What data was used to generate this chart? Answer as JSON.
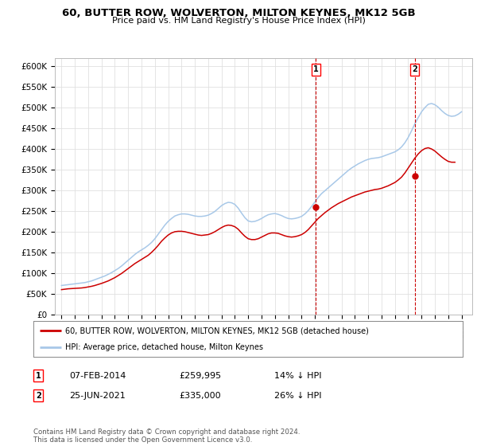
{
  "title": "60, BUTTER ROW, WOLVERTON, MILTON KEYNES, MK12 5GB",
  "subtitle": "Price paid vs. HM Land Registry's House Price Index (HPI)",
  "ylabel_ticks": [
    "£0",
    "£50K",
    "£100K",
    "£150K",
    "£200K",
    "£250K",
    "£300K",
    "£350K",
    "£400K",
    "£450K",
    "£500K",
    "£550K",
    "£600K"
  ],
  "ylim": [
    0,
    620000
  ],
  "xlim_start": 1994.5,
  "xlim_end": 2025.8,
  "hpi_color": "#a8c8e8",
  "price_color": "#cc0000",
  "marker1_year": 2014.08,
  "marker1_price": 259995,
  "marker1_label": "1",
  "marker1_date": "07-FEB-2014",
  "marker1_pct": "14% ↓ HPI",
  "marker2_year": 2021.48,
  "marker2_price": 335000,
  "marker2_label": "2",
  "marker2_date": "25-JUN-2021",
  "marker2_pct": "26% ↓ HPI",
  "legend_line1": "60, BUTTER ROW, WOLVERTON, MILTON KEYNES, MK12 5GB (detached house)",
  "legend_line2": "HPI: Average price, detached house, Milton Keynes",
  "footer": "Contains HM Land Registry data © Crown copyright and database right 2024.\nThis data is licensed under the Open Government Licence v3.0.",
  "background_color": "#ffffff",
  "grid_color": "#e0e0e0",
  "hpi_years": [
    1995.0,
    1995.25,
    1995.5,
    1995.75,
    1996.0,
    1996.25,
    1996.5,
    1996.75,
    1997.0,
    1997.25,
    1997.5,
    1997.75,
    1998.0,
    1998.25,
    1998.5,
    1998.75,
    1999.0,
    1999.25,
    1999.5,
    1999.75,
    2000.0,
    2000.25,
    2000.5,
    2000.75,
    2001.0,
    2001.25,
    2001.5,
    2001.75,
    2002.0,
    2002.25,
    2002.5,
    2002.75,
    2003.0,
    2003.25,
    2003.5,
    2003.75,
    2004.0,
    2004.25,
    2004.5,
    2004.75,
    2005.0,
    2005.25,
    2005.5,
    2005.75,
    2006.0,
    2006.25,
    2006.5,
    2006.75,
    2007.0,
    2007.25,
    2007.5,
    2007.75,
    2008.0,
    2008.25,
    2008.5,
    2008.75,
    2009.0,
    2009.25,
    2009.5,
    2009.75,
    2010.0,
    2010.25,
    2010.5,
    2010.75,
    2011.0,
    2011.25,
    2011.5,
    2011.75,
    2012.0,
    2012.25,
    2012.5,
    2012.75,
    2013.0,
    2013.25,
    2013.5,
    2013.75,
    2014.0,
    2014.25,
    2014.5,
    2014.75,
    2015.0,
    2015.25,
    2015.5,
    2015.75,
    2016.0,
    2016.25,
    2016.5,
    2016.75,
    2017.0,
    2017.25,
    2017.5,
    2017.75,
    2018.0,
    2018.25,
    2018.5,
    2018.75,
    2019.0,
    2019.25,
    2019.5,
    2019.75,
    2020.0,
    2020.25,
    2020.5,
    2020.75,
    2021.0,
    2021.25,
    2021.5,
    2021.75,
    2022.0,
    2022.25,
    2022.5,
    2022.75,
    2023.0,
    2023.25,
    2023.5,
    2023.75,
    2024.0,
    2024.25,
    2024.5,
    2024.75,
    2025.0
  ],
  "hpi_values": [
    70000,
    71000,
    72000,
    73000,
    74000,
    75000,
    76000,
    77000,
    79000,
    81000,
    84000,
    87000,
    90000,
    93000,
    97000,
    101000,
    106000,
    111000,
    117000,
    124000,
    131000,
    138000,
    145000,
    151000,
    156000,
    161000,
    167000,
    174000,
    183000,
    194000,
    205000,
    216000,
    225000,
    232000,
    238000,
    241000,
    243000,
    243000,
    242000,
    240000,
    238000,
    237000,
    237000,
    238000,
    240000,
    244000,
    249000,
    256000,
    263000,
    268000,
    271000,
    270000,
    266000,
    257000,
    245000,
    234000,
    226000,
    224000,
    225000,
    228000,
    232000,
    237000,
    241000,
    243000,
    244000,
    242000,
    239000,
    235000,
    232000,
    231000,
    232000,
    234000,
    237000,
    243000,
    251000,
    261000,
    272000,
    283000,
    292000,
    299000,
    306000,
    313000,
    320000,
    327000,
    334000,
    341000,
    348000,
    354000,
    359000,
    364000,
    368000,
    372000,
    375000,
    377000,
    378000,
    379000,
    381000,
    384000,
    387000,
    390000,
    393000,
    398000,
    405000,
    415000,
    428000,
    444000,
    461000,
    476000,
    490000,
    500000,
    508000,
    510000,
    507000,
    501000,
    493000,
    486000,
    481000,
    479000,
    480000,
    484000,
    490000
  ],
  "price_years": [
    1995.0,
    1995.25,
    1995.5,
    1995.75,
    1996.0,
    1996.25,
    1996.5,
    1996.75,
    1997.0,
    1997.25,
    1997.5,
    1997.75,
    1998.0,
    1998.25,
    1998.5,
    1998.75,
    1999.0,
    1999.25,
    1999.5,
    1999.75,
    2000.0,
    2000.25,
    2000.5,
    2000.75,
    2001.0,
    2001.25,
    2001.5,
    2001.75,
    2002.0,
    2002.25,
    2002.5,
    2002.75,
    2003.0,
    2003.25,
    2003.5,
    2003.75,
    2004.0,
    2004.25,
    2004.5,
    2004.75,
    2005.0,
    2005.25,
    2005.5,
    2005.75,
    2006.0,
    2006.25,
    2006.5,
    2006.75,
    2007.0,
    2007.25,
    2007.5,
    2007.75,
    2008.0,
    2008.25,
    2008.5,
    2008.75,
    2009.0,
    2009.25,
    2009.5,
    2009.75,
    2010.0,
    2010.25,
    2010.5,
    2010.75,
    2011.0,
    2011.25,
    2011.5,
    2011.75,
    2012.0,
    2012.25,
    2012.5,
    2012.75,
    2013.0,
    2013.25,
    2013.5,
    2013.75,
    2014.0,
    2014.25,
    2014.5,
    2014.75,
    2015.0,
    2015.25,
    2015.5,
    2015.75,
    2016.0,
    2016.25,
    2016.5,
    2016.75,
    2017.0,
    2017.25,
    2017.5,
    2017.75,
    2018.0,
    2018.25,
    2018.5,
    2018.75,
    2019.0,
    2019.25,
    2019.5,
    2019.75,
    2020.0,
    2020.25,
    2020.5,
    2020.75,
    2021.0,
    2021.25,
    2021.5,
    2021.75,
    2022.0,
    2022.25,
    2022.5,
    2022.75,
    2023.0,
    2023.25,
    2023.5,
    2023.75,
    2024.0,
    2024.25,
    2024.5
  ],
  "price_values": [
    60000,
    61000,
    62000,
    62500,
    63000,
    63500,
    64000,
    65000,
    66500,
    68000,
    70000,
    72500,
    75000,
    78000,
    81000,
    85000,
    89000,
    94000,
    99000,
    105000,
    111000,
    117000,
    123000,
    128000,
    133000,
    138000,
    143000,
    150000,
    158000,
    167000,
    177000,
    185000,
    192000,
    197000,
    200000,
    201000,
    201000,
    200000,
    198000,
    196000,
    194000,
    192000,
    191000,
    192000,
    193000,
    196000,
    200000,
    205000,
    210000,
    214000,
    216000,
    215000,
    212000,
    206000,
    197000,
    189000,
    183000,
    181000,
    181000,
    183000,
    187000,
    191000,
    195000,
    197000,
    197000,
    196000,
    193000,
    190000,
    188000,
    187000,
    188000,
    190000,
    193000,
    198000,
    205000,
    214000,
    223000,
    232000,
    239000,
    246000,
    252000,
    258000,
    263000,
    268000,
    272000,
    276000,
    280000,
    284000,
    287000,
    290000,
    293000,
    296000,
    298000,
    300000,
    302000,
    303000,
    305000,
    308000,
    311000,
    315000,
    319000,
    325000,
    332000,
    342000,
    354000,
    366000,
    378000,
    388000,
    396000,
    401000,
    403000,
    400000,
    395000,
    388000,
    381000,
    375000,
    370000,
    368000,
    368000
  ]
}
